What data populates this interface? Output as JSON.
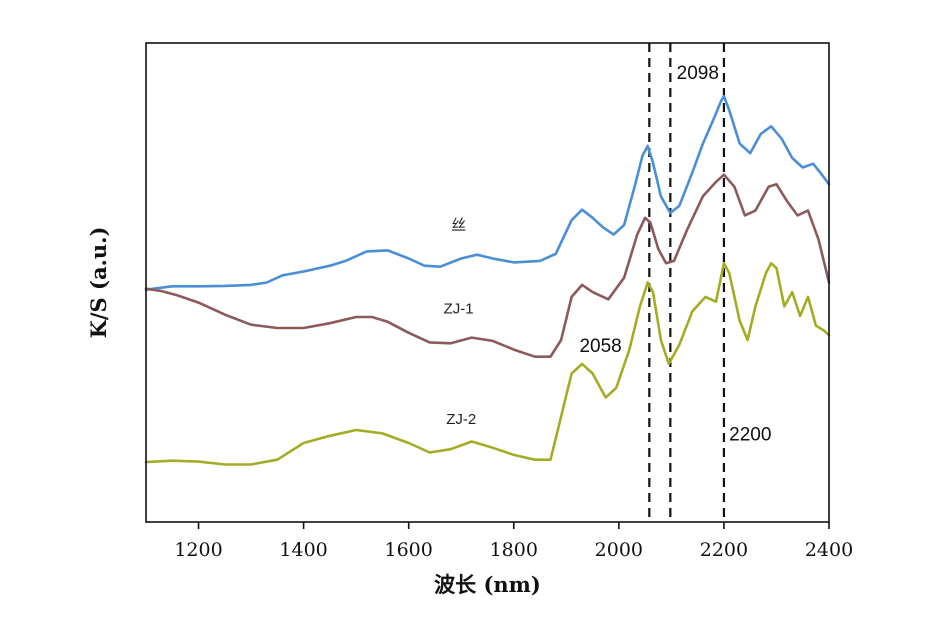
{
  "chart_data": {
    "type": "line",
    "xlabel": "波长 (nm)",
    "ylabel": "K/S (a.u.)",
    "xlim": [
      1100,
      2400
    ],
    "ylim": [
      0,
      1
    ],
    "xticks": [
      1200,
      1400,
      1600,
      1800,
      2000,
      2200,
      2400
    ],
    "yticks_shown": false,
    "grid": false,
    "legend": "none",
    "series": [
      {
        "name": "丝",
        "color": "#4a8fd6",
        "points": [
          [
            1100,
            0.485
          ],
          [
            1150,
            0.492
          ],
          [
            1200,
            0.492
          ],
          [
            1250,
            0.493
          ],
          [
            1300,
            0.495
          ],
          [
            1330,
            0.5
          ],
          [
            1360,
            0.515
          ],
          [
            1400,
            0.523
          ],
          [
            1450,
            0.535
          ],
          [
            1480,
            0.545
          ],
          [
            1520,
            0.565
          ],
          [
            1560,
            0.567
          ],
          [
            1600,
            0.55
          ],
          [
            1630,
            0.535
          ],
          [
            1660,
            0.533
          ],
          [
            1700,
            0.55
          ],
          [
            1730,
            0.558
          ],
          [
            1760,
            0.55
          ],
          [
            1800,
            0.542
          ],
          [
            1850,
            0.545
          ],
          [
            1880,
            0.56
          ],
          [
            1910,
            0.63
          ],
          [
            1930,
            0.652
          ],
          [
            1950,
            0.635
          ],
          [
            1970,
            0.615
          ],
          [
            1990,
            0.6
          ],
          [
            2010,
            0.62
          ],
          [
            2030,
            0.7
          ],
          [
            2045,
            0.765
          ],
          [
            2055,
            0.785
          ],
          [
            2065,
            0.75
          ],
          [
            2080,
            0.68
          ],
          [
            2098,
            0.645
          ],
          [
            2115,
            0.66
          ],
          [
            2140,
            0.73
          ],
          [
            2160,
            0.79
          ],
          [
            2180,
            0.84
          ],
          [
            2195,
            0.88
          ],
          [
            2200,
            0.889
          ],
          [
            2210,
            0.86
          ],
          [
            2230,
            0.79
          ],
          [
            2250,
            0.77
          ],
          [
            2270,
            0.81
          ],
          [
            2290,
            0.826
          ],
          [
            2310,
            0.8
          ],
          [
            2330,
            0.76
          ],
          [
            2350,
            0.74
          ],
          [
            2370,
            0.748
          ],
          [
            2390,
            0.72
          ],
          [
            2400,
            0.705
          ]
        ]
      },
      {
        "name": "ZJ-1",
        "color": "#8c5a5a",
        "points": [
          [
            1100,
            0.487
          ],
          [
            1130,
            0.482
          ],
          [
            1160,
            0.473
          ],
          [
            1200,
            0.458
          ],
          [
            1250,
            0.433
          ],
          [
            1300,
            0.412
          ],
          [
            1350,
            0.405
          ],
          [
            1400,
            0.405
          ],
          [
            1450,
            0.415
          ],
          [
            1500,
            0.428
          ],
          [
            1530,
            0.428
          ],
          [
            1560,
            0.418
          ],
          [
            1600,
            0.395
          ],
          [
            1640,
            0.375
          ],
          [
            1680,
            0.373
          ],
          [
            1720,
            0.385
          ],
          [
            1760,
            0.378
          ],
          [
            1800,
            0.36
          ],
          [
            1840,
            0.345
          ],
          [
            1870,
            0.345
          ],
          [
            1890,
            0.38
          ],
          [
            1910,
            0.47
          ],
          [
            1930,
            0.495
          ],
          [
            1950,
            0.48
          ],
          [
            1980,
            0.465
          ],
          [
            2010,
            0.51
          ],
          [
            2035,
            0.6
          ],
          [
            2050,
            0.635
          ],
          [
            2060,
            0.625
          ],
          [
            2075,
            0.57
          ],
          [
            2090,
            0.54
          ],
          [
            2105,
            0.545
          ],
          [
            2130,
            0.61
          ],
          [
            2160,
            0.68
          ],
          [
            2185,
            0.71
          ],
          [
            2200,
            0.725
          ],
          [
            2220,
            0.7
          ],
          [
            2240,
            0.64
          ],
          [
            2260,
            0.65
          ],
          [
            2285,
            0.7
          ],
          [
            2300,
            0.705
          ],
          [
            2320,
            0.67
          ],
          [
            2340,
            0.64
          ],
          [
            2360,
            0.65
          ],
          [
            2380,
            0.59
          ],
          [
            2400,
            0.5
          ]
        ]
      },
      {
        "name": "ZJ-2",
        "color": "#a4ac26",
        "points": [
          [
            1100,
            0.125
          ],
          [
            1150,
            0.128
          ],
          [
            1200,
            0.126
          ],
          [
            1250,
            0.12
          ],
          [
            1300,
            0.12
          ],
          [
            1350,
            0.13
          ],
          [
            1400,
            0.165
          ],
          [
            1450,
            0.18
          ],
          [
            1500,
            0.192
          ],
          [
            1550,
            0.185
          ],
          [
            1600,
            0.165
          ],
          [
            1640,
            0.145
          ],
          [
            1680,
            0.152
          ],
          [
            1720,
            0.168
          ],
          [
            1760,
            0.155
          ],
          [
            1800,
            0.14
          ],
          [
            1840,
            0.13
          ],
          [
            1870,
            0.13
          ],
          [
            1890,
            0.22
          ],
          [
            1910,
            0.31
          ],
          [
            1930,
            0.33
          ],
          [
            1950,
            0.31
          ],
          [
            1975,
            0.26
          ],
          [
            1995,
            0.28
          ],
          [
            2020,
            0.36
          ],
          [
            2040,
            0.45
          ],
          [
            2055,
            0.5
          ],
          [
            2065,
            0.48
          ],
          [
            2080,
            0.38
          ],
          [
            2095,
            0.33
          ],
          [
            2115,
            0.37
          ],
          [
            2140,
            0.44
          ],
          [
            2165,
            0.47
          ],
          [
            2185,
            0.46
          ],
          [
            2200,
            0.54
          ],
          [
            2210,
            0.52
          ],
          [
            2230,
            0.42
          ],
          [
            2245,
            0.38
          ],
          [
            2260,
            0.45
          ],
          [
            2280,
            0.52
          ],
          [
            2290,
            0.54
          ],
          [
            2300,
            0.53
          ],
          [
            2315,
            0.45
          ],
          [
            2330,
            0.48
          ],
          [
            2345,
            0.43
          ],
          [
            2360,
            0.47
          ],
          [
            2375,
            0.41
          ],
          [
            2390,
            0.4
          ],
          [
            2400,
            0.39
          ]
        ]
      }
    ],
    "series_labels": [
      {
        "series": 0,
        "text": "丝",
        "x": 1695,
        "y": 0.61
      },
      {
        "series": 1,
        "text": "ZJ-1",
        "x": 1695,
        "y": 0.435
      },
      {
        "series": 2,
        "text": "ZJ-2",
        "x": 1700,
        "y": 0.205
      }
    ],
    "reference_lines": [
      {
        "x": 2058,
        "label": "2058",
        "label_x": 1925,
        "label_y": 0.355
      },
      {
        "x": 2098,
        "label": "2098",
        "label_x": 2110,
        "label_y": 0.925
      },
      {
        "x": 2200,
        "label": "2200",
        "label_x": 2210,
        "label_y": 0.17
      }
    ]
  }
}
